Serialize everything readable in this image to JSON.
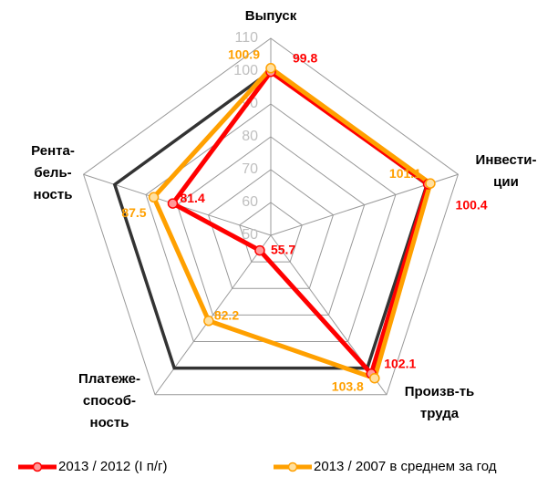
{
  "chart_data": {
    "type": "radar",
    "axes": [
      [
        "Выпуск"
      ],
      [
        "Инвести-",
        "ции"
      ],
      [
        "Произв-ть",
        "труда"
      ],
      [
        "Платеже-",
        "способ-",
        "ность"
      ],
      [
        "Рента-",
        "бель-",
        "ность"
      ]
    ],
    "series": [
      {
        "name": "2013 / 2012 (I п/г)",
        "color": "#ff0000",
        "values": [
          99.8,
          100.4,
          102.1,
          55.7,
          81.4
        ]
      },
      {
        "name": "2013 / 2007 в среднем за год",
        "color": "#ffa000",
        "values": [
          100.9,
          101.1,
          103.8,
          82.2,
          87.5
        ]
      }
    ],
    "rlim": [
      50,
      110
    ],
    "rticks": [
      50,
      60,
      70,
      80,
      90,
      100,
      110
    ],
    "highlight_ring": 100,
    "grid": true,
    "legend": "bottom"
  }
}
